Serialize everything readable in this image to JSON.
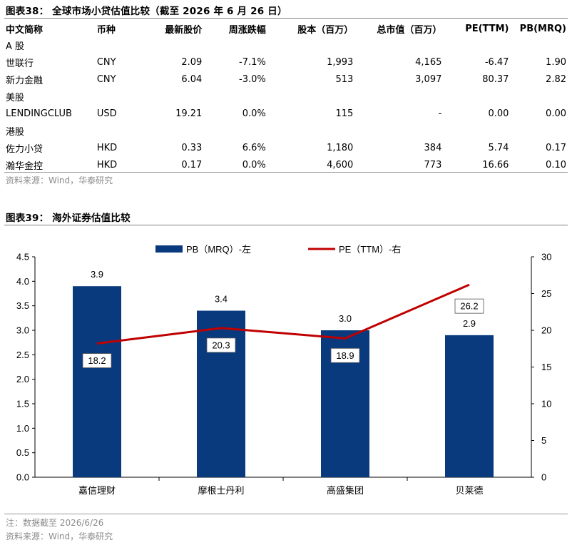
{
  "table_title": "图表38：  全球市场小贷估值比较（截至 2026 年 6 月 26 日）",
  "table": {
    "headers": [
      "中文简称",
      "币种",
      "最新股价",
      "周涨跌幅",
      "股本（百万）",
      "总市值（百万）",
      "PE(TTM)",
      "PB(MRQ)"
    ],
    "groups": [
      {
        "name": "A 股",
        "rows": [
          [
            "世联行",
            "CNY",
            "2.09",
            "-7.1%",
            "1,993",
            "4,165",
            "-6.47",
            "1.90"
          ],
          [
            "新力金融",
            "CNY",
            "6.04",
            "-3.0%",
            "513",
            "3,097",
            "80.37",
            "2.82"
          ]
        ]
      },
      {
        "name": "美股",
        "rows": [
          [
            "LENDINGCLUB",
            "USD",
            "19.21",
            "0.0%",
            "115",
            "-",
            "0.00",
            "0.00"
          ]
        ]
      },
      {
        "name": "港股",
        "rows": [
          [
            "佐力小贷",
            "HKD",
            "0.33",
            "6.6%",
            "1,180",
            "384",
            "5.74",
            "0.17"
          ],
          [
            "瀚华金控",
            "HKD",
            "0.17",
            "0.0%",
            "4,600",
            "773",
            "16.66",
            "0.10"
          ]
        ]
      }
    ]
  },
  "table_source": "资料来源：Wind，华泰研究",
  "chart_title": "图表39：  海外证券估值比较",
  "chart_note": "注：数据截至 2026/6/26",
  "chart_source": "资料来源：Wind，华泰研究",
  "chart_data": {
    "type": "bar",
    "categories": [
      "嘉信理财",
      "摩根士丹利",
      "高盛集团",
      "贝莱德"
    ],
    "series": [
      {
        "name": "PB（MRQ）-左",
        "type": "bar",
        "axis": "left",
        "color": "#0a3a7e",
        "values": [
          3.9,
          3.4,
          3.0,
          2.9
        ]
      },
      {
        "name": "PE（TTM）-右",
        "type": "line",
        "axis": "right",
        "color": "#c00000",
        "values": [
          18.2,
          20.3,
          18.9,
          26.2
        ]
      }
    ],
    "ylim_left": [
      0,
      4.5
    ],
    "yticks_left": [
      "0.0",
      "0.5",
      "1.0",
      "1.5",
      "2.0",
      "2.5",
      "3.0",
      "3.5",
      "4.0",
      "4.5"
    ],
    "ylim_right": [
      0,
      30
    ],
    "yticks_right": [
      "0",
      "5",
      "10",
      "15",
      "20",
      "25",
      "30"
    ],
    "legend_position": "top-center",
    "grid": false
  }
}
